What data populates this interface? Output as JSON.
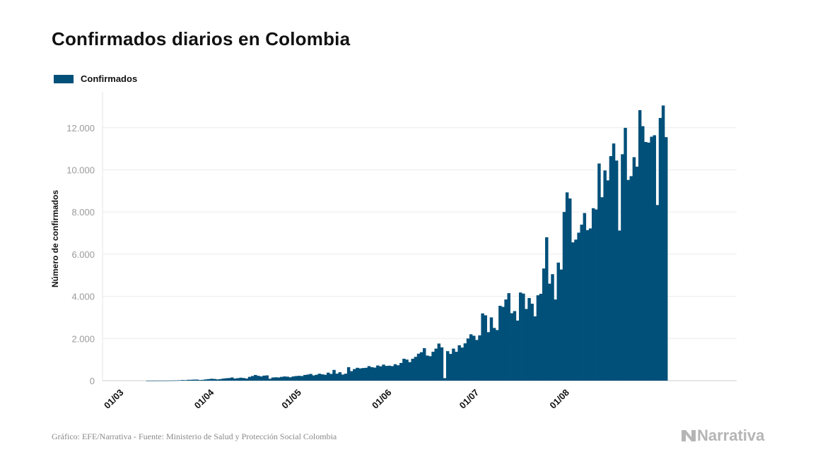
{
  "title": "Confirmados diarios en Colombia",
  "legend": {
    "label": "Confirmados",
    "color": "#00507a"
  },
  "footer": {
    "source": "Gráfico: EFE/Narrativa - Fuente: Ministerio de Salud y Protección Social Colombia",
    "brand": "Narrativa"
  },
  "chart_data": {
    "type": "bar",
    "ylabel": "Número de confirmados",
    "xlabel": "",
    "ylim": [
      0,
      13500
    ],
    "yticks": [
      0,
      2000,
      4000,
      6000,
      8000,
      10000,
      12000
    ],
    "ytick_labels": [
      "0",
      "2.000",
      "4.000",
      "6.000",
      "8.000",
      "10.000",
      "12.000"
    ],
    "xticks": [
      "01/03",
      "01/04",
      "01/05",
      "01/06",
      "01/07",
      "01/08"
    ],
    "grid": true,
    "color": "#00507a",
    "start_date": "2020-03-01",
    "values": [
      0,
      0,
      0,
      0,
      0,
      1,
      1,
      1,
      3,
      3,
      3,
      4,
      5,
      10,
      10,
      14,
      20,
      30,
      25,
      40,
      43,
      50,
      50,
      30,
      40,
      60,
      75,
      90,
      80,
      60,
      75,
      100,
      115,
      125,
      150,
      100,
      120,
      140,
      125,
      100,
      180,
      220,
      270,
      230,
      200,
      240,
      250,
      90,
      150,
      160,
      150,
      180,
      200,
      190,
      160,
      200,
      220,
      230,
      220,
      270,
      290,
      320,
      250,
      280,
      330,
      300,
      280,
      380,
      320,
      510,
      330,
      400,
      290,
      330,
      640,
      450,
      550,
      610,
      580,
      600,
      610,
      690,
      640,
      620,
      720,
      680,
      760,
      700,
      710,
      690,
      780,
      730,
      840,
      1040,
      1000,
      880,
      1040,
      1130,
      1280,
      1350,
      1540,
      1190,
      1160,
      1370,
      1520,
      1760,
      1580,
      120,
      1400,
      1270,
      1520,
      1370,
      1680,
      1570,
      1770,
      2000,
      2200,
      2130,
      1930,
      2150,
      3190,
      3100,
      2300,
      3000,
      2500,
      2400,
      3550,
      3500,
      3850,
      4150,
      3200,
      3300,
      2850,
      4180,
      4130,
      3400,
      3920,
      3650,
      3050,
      4050,
      4120,
      5320,
      6800,
      4600,
      5050,
      3850,
      5600,
      5270,
      8000,
      8930,
      8640,
      6560,
      6690,
      7020,
      7400,
      7950,
      7140,
      7220,
      8180,
      8120,
      10300,
      8700,
      9970,
      9500,
      10650,
      11250,
      10440,
      7120,
      10740,
      11990,
      9520,
      9700,
      10600,
      10150,
      12830,
      12070,
      11320,
      11290,
      11570,
      11640,
      8330,
      12460,
      13050,
      11550
    ]
  }
}
